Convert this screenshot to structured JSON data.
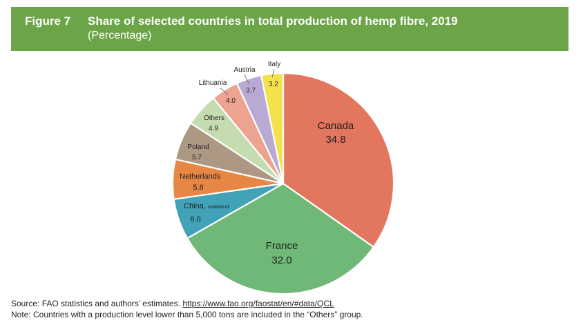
{
  "header": {
    "figure_label": "Figure 7",
    "title": "Share of selected countries in total production of hemp fibre, 2019",
    "subtitle": "(Percentage)",
    "background_color": "#6ba547"
  },
  "chart_data": {
    "type": "pie",
    "title": "Share of selected countries in total production of hemp fibre, 2019",
    "subtitle": "(Percentage)",
    "start": "12 o'clock",
    "direction": "clockwise",
    "slices": [
      {
        "label": "Canada",
        "value": 34.8,
        "color": "#e3765e"
      },
      {
        "label": "France",
        "value": 32.0,
        "color": "#6fb877"
      },
      {
        "label": "China, mainland",
        "label_main": "China,",
        "label_small": "mainland",
        "value": 6.0,
        "color": "#42a2b7"
      },
      {
        "label": "Netherlands",
        "value": 5.8,
        "color": "#e88745"
      },
      {
        "label": "Poland",
        "value": 5.7,
        "color": "#ad9883"
      },
      {
        "label": "Others",
        "value": 4.9,
        "color": "#c5dcb0"
      },
      {
        "label": "Lithuania",
        "value": 4.0,
        "color": "#eca38f"
      },
      {
        "label": "Austria",
        "value": 3.7,
        "color": "#b9aad4"
      },
      {
        "label": "Italy",
        "value": 3.2,
        "color": "#f4e24d"
      }
    ],
    "value_format": "one decimal"
  },
  "footer": {
    "source_prefix": "Source: FAO statistics and authors’ estimates.",
    "source_url": "https://www.fao.org/faostat/en/#data/QCL",
    "note": "Note: Countries with a production level lower than 5,000 tons are included in the “Others” group."
  }
}
